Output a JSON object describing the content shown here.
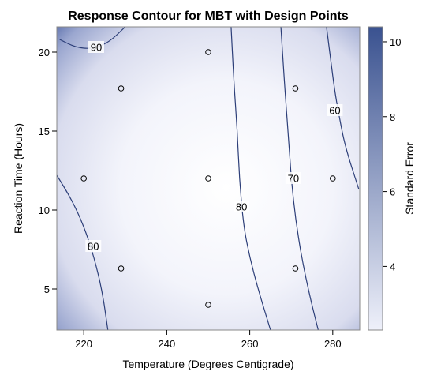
{
  "chart_data": {
    "type": "contour",
    "title": "Response Contour for MBT with Design Points",
    "xlabel": "Temperature (Degrees Centigrade)",
    "ylabel": "Reaction Time (Hours)",
    "xlim": [
      213.5,
      286.5
    ],
    "ylim": [
      2.4,
      21.6
    ],
    "xticks": [
      220,
      240,
      260,
      280
    ],
    "yticks": [
      5,
      10,
      15,
      20
    ],
    "design_points": [
      {
        "x": 250,
        "y": 20
      },
      {
        "x": 229,
        "y": 17.7
      },
      {
        "x": 271,
        "y": 17.7
      },
      {
        "x": 220,
        "y": 12
      },
      {
        "x": 250,
        "y": 12
      },
      {
        "x": 280,
        "y": 12
      },
      {
        "x": 229,
        "y": 6.3
      },
      {
        "x": 271,
        "y": 6.3
      },
      {
        "x": 250,
        "y": 4
      }
    ],
    "contours": [
      {
        "level": "90",
        "points": [
          [
            214.2,
            20.8
          ],
          [
            218,
            20.3
          ],
          [
            222,
            20.2
          ],
          [
            226,
            20.6
          ],
          [
            230,
            21.6
          ]
        ],
        "label_at": [
          223,
          20.3
        ]
      },
      {
        "level": "80",
        "points": [
          [
            213.5,
            12.2
          ],
          [
            217,
            10.7
          ],
          [
            220,
            9.0
          ],
          [
            222.5,
            7.0
          ],
          [
            224.5,
            4.8
          ],
          [
            225.8,
            2.4
          ]
        ],
        "label_at": [
          222.3,
          7.7
        ]
      },
      {
        "level": "80",
        "points": [
          [
            255.5,
            21.6
          ],
          [
            256.2,
            18
          ],
          [
            257,
            15
          ],
          [
            257.5,
            12
          ],
          [
            258.5,
            9
          ],
          [
            260,
            7
          ],
          [
            262,
            5
          ],
          [
            265,
            2.4
          ]
        ],
        "label_at": [
          258,
          10.2
        ]
      },
      {
        "level": "70",
        "points": [
          [
            267.5,
            21.6
          ],
          [
            268.5,
            17.5
          ],
          [
            269.5,
            14
          ],
          [
            270,
            12
          ],
          [
            271,
            9.5
          ],
          [
            272.5,
            7
          ],
          [
            274.5,
            4.5
          ],
          [
            276.5,
            2.4
          ]
        ],
        "label_at": [
          270.5,
          12
        ]
      },
      {
        "level": "60",
        "points": [
          [
            278.5,
            21.6
          ],
          [
            279.5,
            19.5
          ],
          [
            280.5,
            17.5
          ],
          [
            281.5,
            16
          ],
          [
            283,
            14
          ],
          [
            286.3,
            11.3
          ]
        ],
        "label_at": [
          280.5,
          16.3
        ]
      }
    ],
    "colorbar": {
      "label": "Standard Error",
      "range": [
        2.3,
        10.4
      ],
      "ticks": [
        4,
        6,
        8,
        10
      ],
      "colors": [
        "#eef0fa",
        "#3a5290"
      ]
    },
    "grid": false
  }
}
